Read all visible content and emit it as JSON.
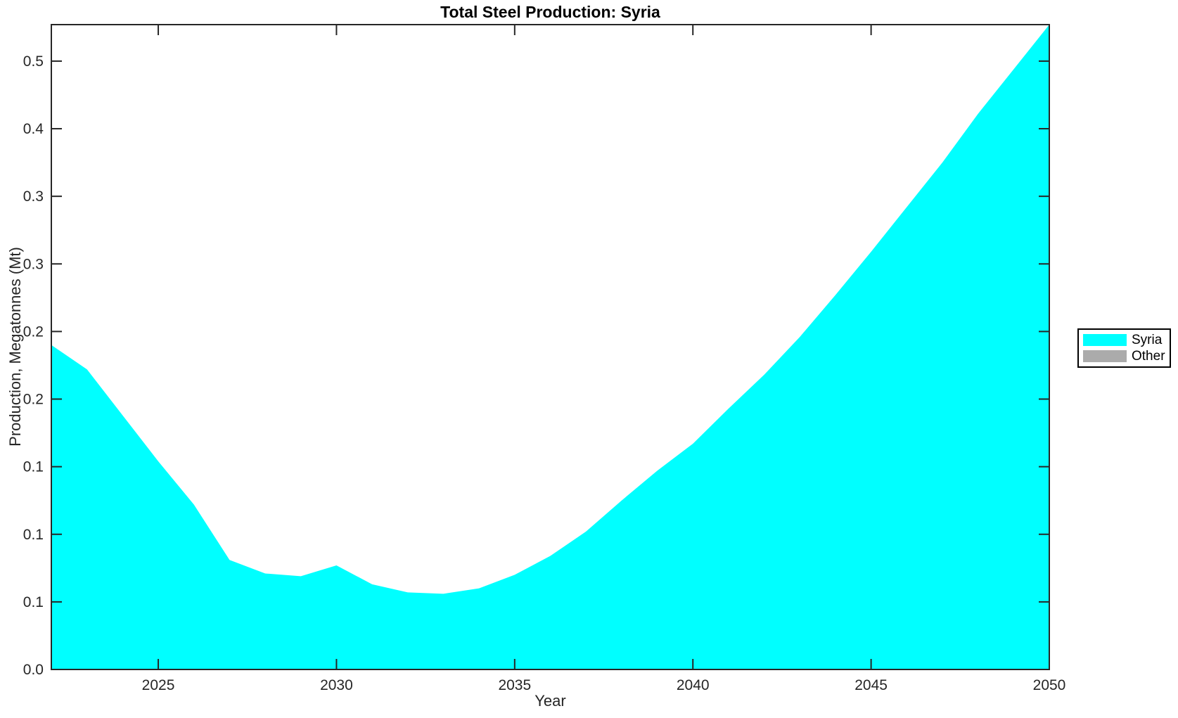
{
  "title": "Total Steel Production: Syria",
  "x_axis": {
    "label": "Year",
    "tick_labels": [
      "2025",
      "2030",
      "2035",
      "2040",
      "2045",
      "2050"
    ],
    "tick_values": [
      2025,
      2030,
      2035,
      2040,
      2045,
      2050
    ],
    "min": 2022,
    "max": 2050
  },
  "y_axis": {
    "label": "Production, Megatonnes (Mt)",
    "tick_labels": [
      "0.0",
      "0.1",
      "0.1",
      "0.1",
      "0.2",
      "0.2",
      "0.3",
      "0.3",
      "0.4",
      "0.5"
    ],
    "tick_values": [
      0,
      0.05,
      0.1,
      0.15,
      0.2,
      0.25,
      0.3,
      0.35,
      0.4,
      0.45
    ],
    "min": 0,
    "max": 0.477
  },
  "legend": {
    "entries": [
      {
        "label": "Syria",
        "color": "#00FFFF"
      },
      {
        "label": "Other",
        "color": "#ABABAB"
      }
    ]
  },
  "colors": {
    "area": "#00FFFF",
    "other": "#ABABAB",
    "axis": "#262626",
    "title": "#000000",
    "background": "#FFFFFF"
  },
  "chart_data": {
    "type": "area",
    "title": "Total Steel Production: Syria",
    "xlabel": "Year",
    "ylabel": "Production, Megatonnes (Mt)",
    "x": [
      2022,
      2023,
      2024,
      2025,
      2026,
      2027,
      2028,
      2029,
      2030,
      2031,
      2032,
      2033,
      2034,
      2035,
      2036,
      2037,
      2038,
      2039,
      2040,
      2041,
      2042,
      2043,
      2044,
      2045,
      2046,
      2047,
      2048,
      2049,
      2050
    ],
    "series": [
      {
        "name": "Syria",
        "values": [
          0.24,
          0.222,
          0.188,
          0.154,
          0.122,
          0.081,
          0.071,
          0.069,
          0.077,
          0.063,
          0.057,
          0.056,
          0.06,
          0.07,
          0.084,
          0.102,
          0.125,
          0.147,
          0.167,
          0.193,
          0.218,
          0.246,
          0.277,
          0.309,
          0.342,
          0.375,
          0.411,
          0.444,
          0.477
        ]
      },
      {
        "name": "Other",
        "values": [
          0,
          0,
          0,
          0,
          0,
          0,
          0,
          0,
          0,
          0,
          0,
          0,
          0,
          0,
          0,
          0,
          0,
          0,
          0,
          0,
          0,
          0,
          0,
          0,
          0,
          0,
          0,
          0,
          0
        ]
      }
    ],
    "xlim": [
      2022,
      2050
    ],
    "ylim": [
      0,
      0.477
    ],
    "grid": false,
    "legend_position": "right-outside"
  }
}
